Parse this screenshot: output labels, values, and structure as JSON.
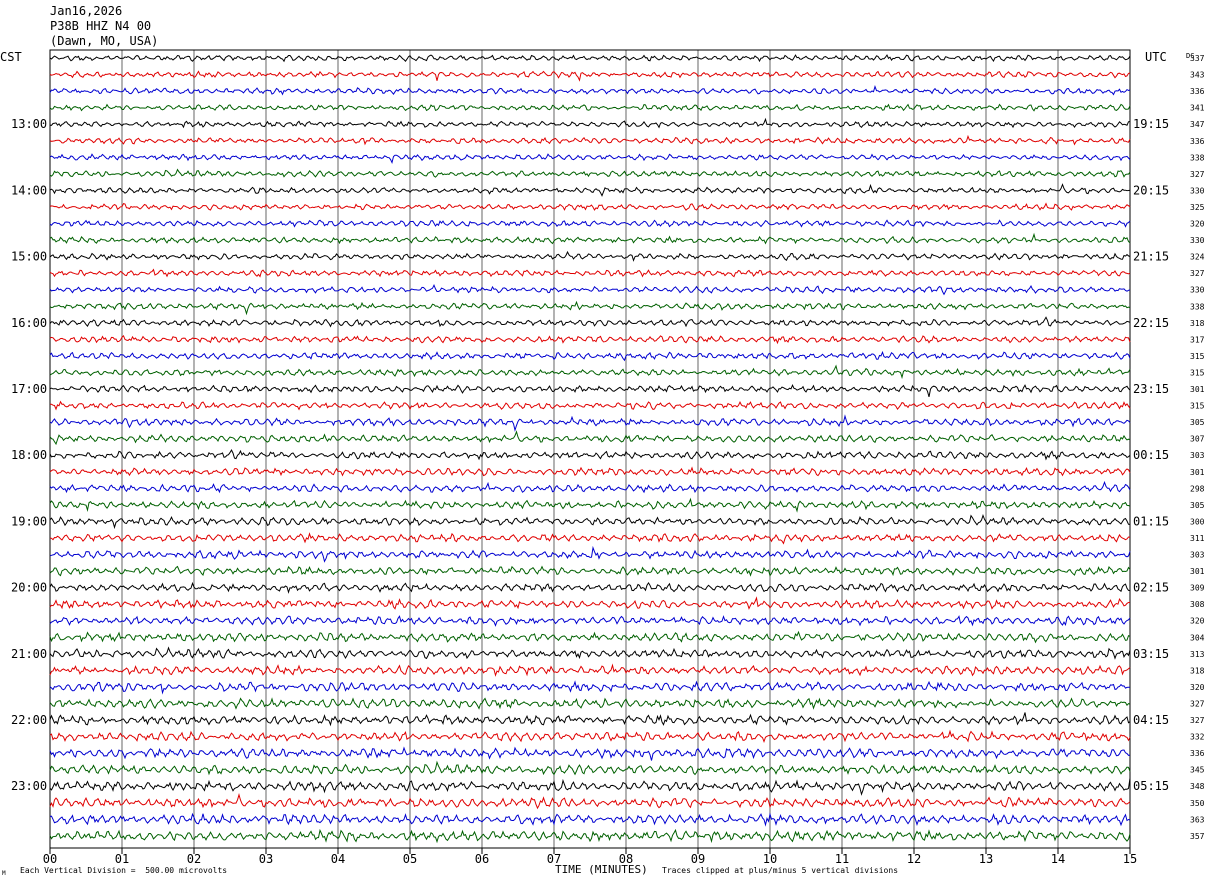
{
  "header": {
    "date": "Jan16,2026",
    "station": "P38B HHZ N4 00",
    "location": "(Dawn, MO, USA)"
  },
  "axis": {
    "left_tz": "CST",
    "right_tz": "UTC",
    "dc_label": "DC",
    "xlabel": "TIME (MINUTES)"
  },
  "footer": {
    "scale_note": "Each Vertical Division =  500.00 microvolts",
    "clip_note": "Traces clipped at plus/minus 5 vertical divisions",
    "corner_mark": "M"
  },
  "colors": {
    "trace_cycle": [
      "#000000",
      "#e00000",
      "#0000d0",
      "#006000"
    ],
    "grid": "#000000",
    "background": "#ffffff"
  },
  "chart_data": {
    "type": "line",
    "subtype": "helicorder",
    "title": "Jan16,2026",
    "xlabel": "TIME (MINUTES)",
    "xlim": [
      0,
      15
    ],
    "x_ticks": [
      "00",
      "01",
      "02",
      "03",
      "04",
      "05",
      "06",
      "07",
      "08",
      "09",
      "10",
      "11",
      "12",
      "13",
      "14",
      "15"
    ],
    "trace_count": 48,
    "traces_per_hour": 4,
    "left_hour_labels": [
      "13:00",
      "14:00",
      "15:00",
      "16:00",
      "17:00",
      "18:00",
      "19:00",
      "20:00",
      "21:00",
      "22:00",
      "23:00"
    ],
    "right_hour_labels": [
      "19:15",
      "20:15",
      "21:15",
      "22:15",
      "23:15",
      "00:15",
      "01:15",
      "02:15",
      "03:15",
      "04:15",
      "05:15"
    ],
    "dc_offsets": [
      337,
      343,
      336,
      341,
      347,
      336,
      338,
      327,
      330,
      325,
      320,
      330,
      324,
      327,
      330,
      338,
      318,
      317,
      315,
      315,
      301,
      315,
      305,
      307,
      303,
      301,
      298,
      305,
      300,
      311,
      303,
      301,
      309,
      308,
      320,
      304,
      313,
      318,
      320,
      327,
      327,
      332,
      336,
      345,
      348,
      350,
      363,
      357
    ],
    "trace_amplitude_level": [
      1.0,
      1.0,
      1.0,
      1.0,
      1.0,
      1.05,
      1.0,
      1.05,
      1.0,
      1.0,
      1.05,
      1.05,
      1.05,
      1.05,
      1.1,
      1.1,
      1.1,
      1.15,
      1.15,
      1.2,
      1.2,
      1.2,
      1.25,
      1.25,
      1.25,
      1.3,
      1.3,
      1.3,
      1.35,
      1.35,
      1.4,
      1.4,
      1.4,
      1.45,
      1.45,
      1.5,
      1.5,
      1.55,
      1.55,
      1.6,
      1.6,
      1.6,
      1.65,
      1.65,
      1.7,
      1.7,
      1.75,
      1.8
    ],
    "scale_microvolts_per_division": 500,
    "clip_divisions": 5
  }
}
